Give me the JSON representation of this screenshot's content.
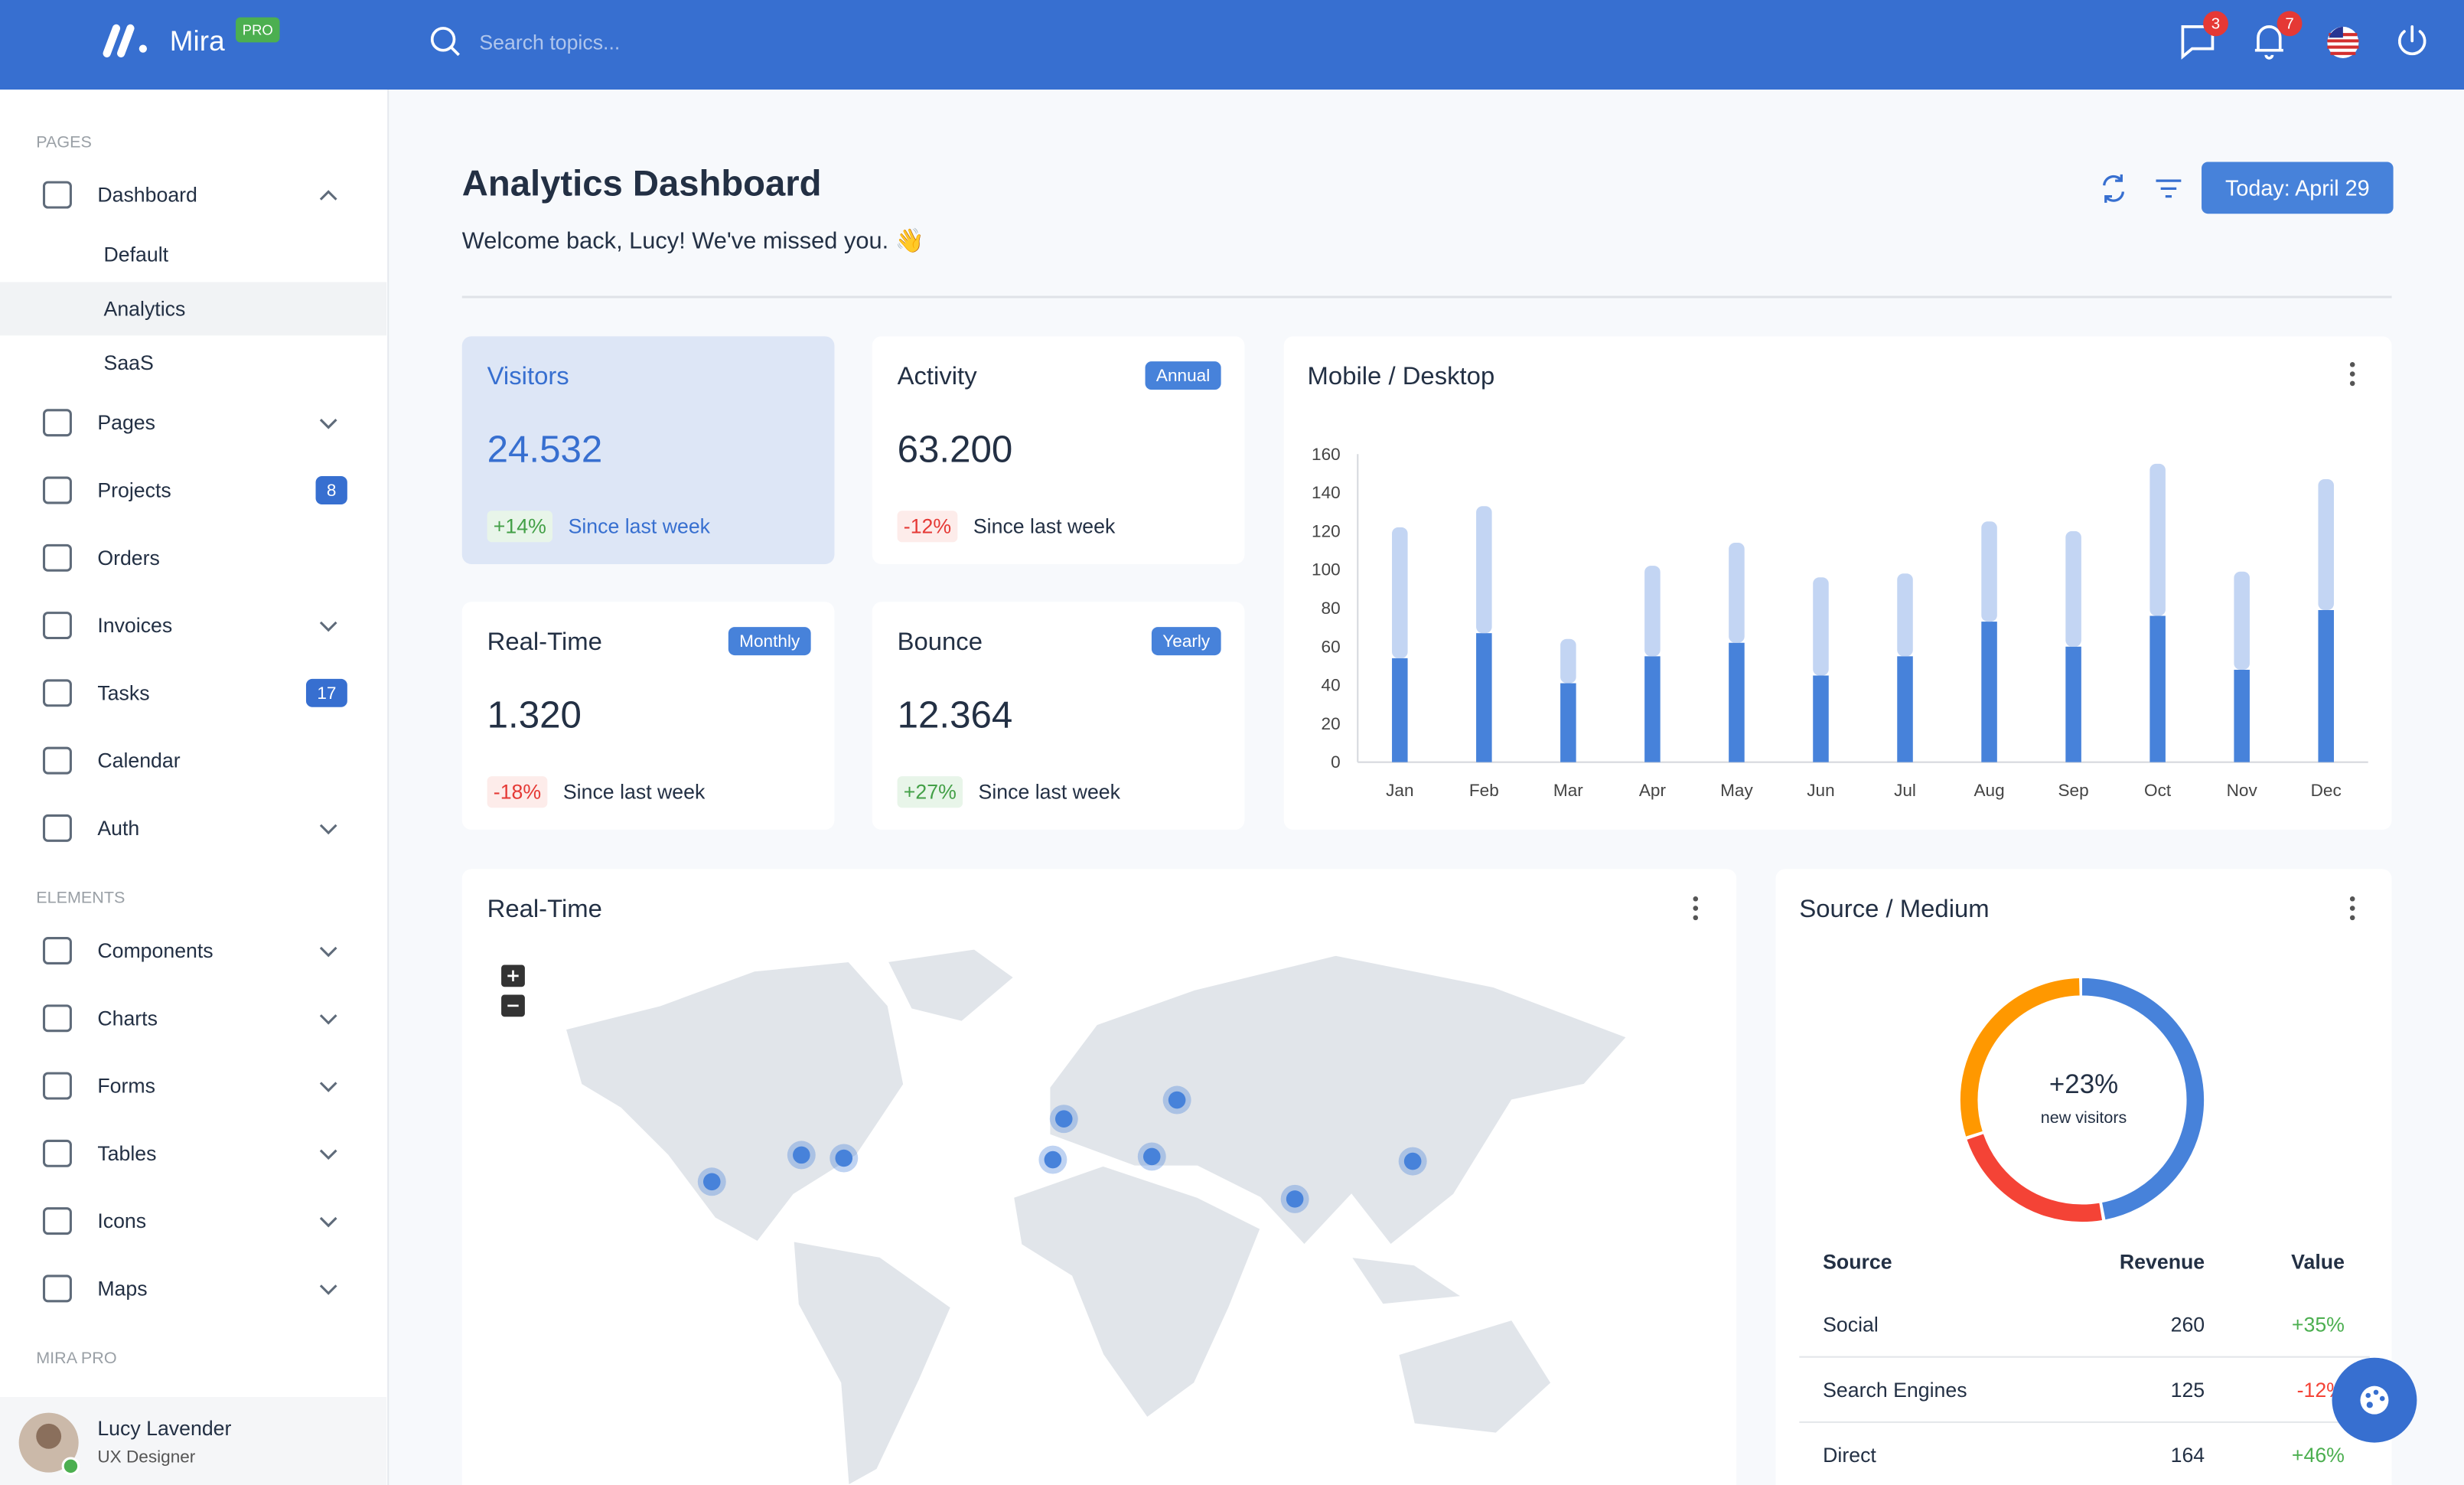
{
  "header": {
    "brand": "Mira",
    "badge": "PRO",
    "search_placeholder": "Search topics...",
    "messages_count": 3,
    "notifications_count": 7
  },
  "sidebar": {
    "sections": [
      {
        "title": "PAGES",
        "items": [
          {
            "label": "Dashboard",
            "chevron": "up",
            "children": [
              "Default",
              "Analytics",
              "SaaS"
            ],
            "active_child": 1
          },
          {
            "label": "Pages",
            "chevron": "down"
          },
          {
            "label": "Projects",
            "badge": 8
          },
          {
            "label": "Orders"
          },
          {
            "label": "Invoices",
            "chevron": "down"
          },
          {
            "label": "Tasks",
            "badge": 17
          },
          {
            "label": "Calendar"
          },
          {
            "label": "Auth",
            "chevron": "down"
          }
        ]
      },
      {
        "title": "ELEMENTS",
        "items": [
          {
            "label": "Components",
            "chevron": "down"
          },
          {
            "label": "Charts",
            "chevron": "down"
          },
          {
            "label": "Forms",
            "chevron": "down"
          },
          {
            "label": "Tables",
            "chevron": "down"
          },
          {
            "label": "Icons",
            "chevron": "down"
          },
          {
            "label": "Maps",
            "chevron": "down"
          }
        ]
      },
      {
        "title": "MIRA PRO",
        "items": []
      }
    ],
    "user": {
      "name": "Lucy Lavender",
      "role": "UX Designer"
    }
  },
  "page": {
    "title": "Analytics Dashboard",
    "subtitle": "Welcome back, Lucy! We've missed you. 👋",
    "date_button": "Today: April 29"
  },
  "stat_cards": [
    {
      "title": "Visitors",
      "value": "24.532",
      "change": "+14%",
      "caption": "Since last week",
      "highlight": true
    },
    {
      "title": "Activity",
      "chip": "Annual",
      "value": "63.200",
      "change": "-12%",
      "caption": "Since last week"
    },
    {
      "title": "Real-Time",
      "chip": "Monthly",
      "value": "1.320",
      "change": "-18%",
      "caption": "Since last week"
    },
    {
      "title": "Bounce",
      "chip": "Yearly",
      "value": "12.364",
      "change": "+27%",
      "caption": "Since last week"
    }
  ],
  "mobile_desktop_chart": {
    "type": "bar",
    "title": "Mobile / Desktop",
    "stacked": true,
    "categories": [
      "Jan",
      "Feb",
      "Mar",
      "Apr",
      "May",
      "Jun",
      "Jul",
      "Aug",
      "Sep",
      "Oct",
      "Nov",
      "Dec"
    ],
    "series": [
      {
        "color": "#4782da",
        "values": [
          54,
          67,
          41,
          55,
          62,
          45,
          55,
          73,
          60,
          76,
          48,
          79
        ]
      },
      {
        "color": "#c3d5f3",
        "values": [
          68,
          66,
          23,
          47,
          52,
          51,
          43,
          52,
          60,
          79,
          51,
          68
        ]
      }
    ],
    "ylim": [
      0,
      160
    ],
    "yticks": [
      0,
      20,
      40,
      60,
      80,
      100,
      120,
      140,
      160
    ]
  },
  "realtime_map": {
    "title": "Real-Time"
  },
  "source_medium": {
    "title": "Source / Medium",
    "type": "doughnut",
    "center_value": "+23%",
    "center_label": "new visitors",
    "segments": [
      {
        "color": "#4782da",
        "value": 260
      },
      {
        "color": "#f44336",
        "value": 125
      },
      {
        "color": "#ff9800",
        "value": 164
      }
    ],
    "table": {
      "headers": [
        "Source",
        "Revenue",
        "Value"
      ],
      "rows": [
        [
          "Social",
          260,
          "+35%"
        ],
        [
          "Search Engines",
          125,
          "-12%"
        ],
        [
          "Direct",
          164,
          "+46%"
        ]
      ]
    }
  }
}
